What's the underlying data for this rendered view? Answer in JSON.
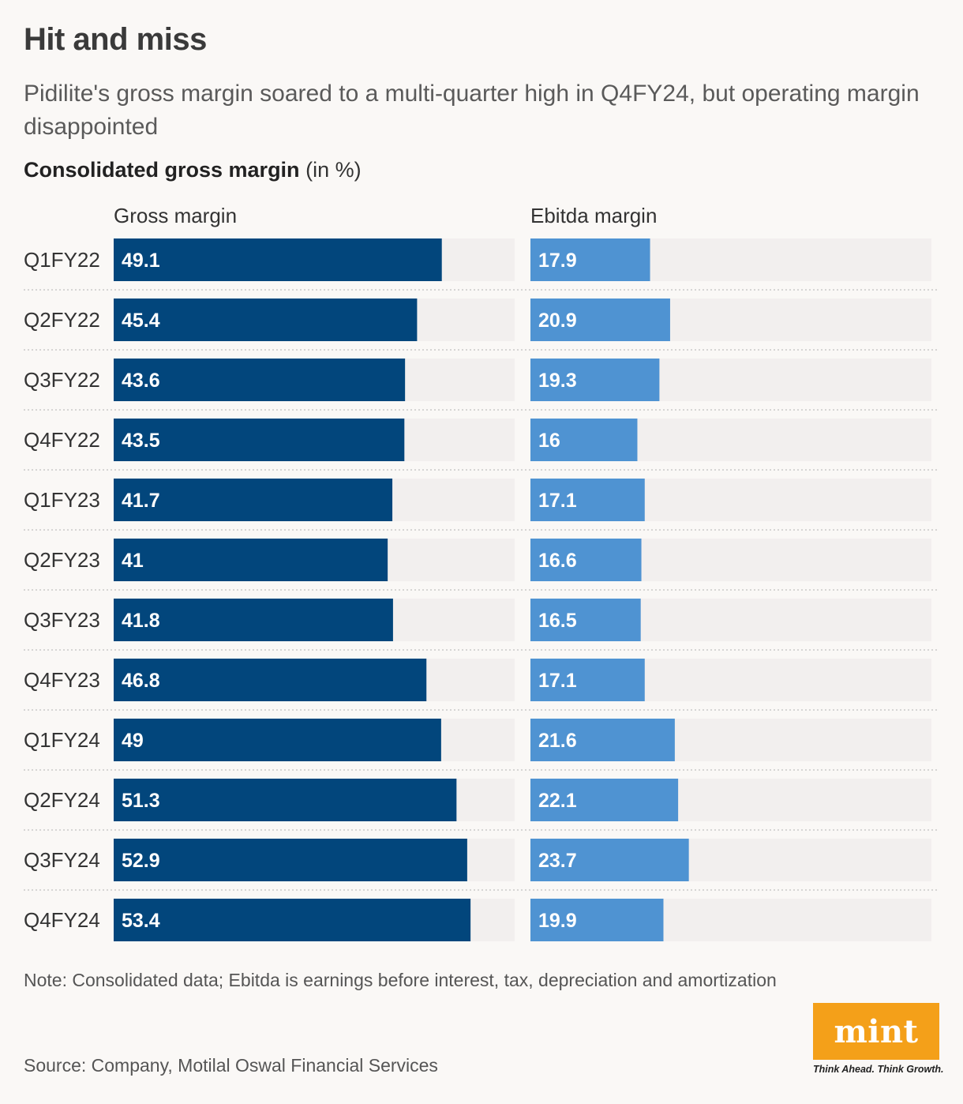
{
  "header": {
    "title": "Hit and miss",
    "subtitle": "Pidilite's gross margin soared to a multi-quarter high in Q4FY24, but operating margin disappointed",
    "chart_heading_bold": "Consolidated gross margin",
    "chart_heading_unit": "(in %)"
  },
  "colors": {
    "gross": "#02467c",
    "ebitda": "#4f93d2",
    "track": "#f2efee",
    "divider": "#c9c9c9"
  },
  "chart_data": {
    "type": "bar",
    "orientation": "horizontal",
    "categories": [
      "Q1FY22",
      "Q2FY22",
      "Q3FY22",
      "Q4FY22",
      "Q1FY23",
      "Q2FY23",
      "Q3FY23",
      "Q4FY23",
      "Q1FY24",
      "Q2FY24",
      "Q3FY24",
      "Q4FY24"
    ],
    "series": [
      {
        "name": "Gross margin",
        "values": [
          49.1,
          45.4,
          43.6,
          43.5,
          41.7,
          41,
          41.8,
          46.8,
          49,
          51.3,
          52.9,
          53.4
        ],
        "labels": [
          "49.1",
          "45.4",
          "43.6",
          "43.5",
          "41.7",
          "41",
          "41.8",
          "46.8",
          "49",
          "51.3",
          "52.9",
          "53.4"
        ],
        "xlim": [
          0,
          60
        ]
      },
      {
        "name": "Ebitda margin",
        "values": [
          17.9,
          20.9,
          19.3,
          16,
          17.1,
          16.6,
          16.5,
          17.1,
          21.6,
          22.1,
          23.7,
          19.9
        ],
        "labels": [
          "17.9",
          "20.9",
          "19.3",
          "16",
          "17.1",
          "16.6",
          "16.5",
          "17.1",
          "21.6",
          "22.1",
          "23.7",
          "19.9"
        ],
        "xlim": [
          0,
          60
        ]
      }
    ],
    "title": "Consolidated gross margin",
    "unit": "(in %)"
  },
  "footer": {
    "note": "Note: Consolidated data; Ebitda is earnings before interest, tax, depreciation and amortization",
    "source": "Source: Company, Motilal Oswal Financial Services",
    "logo_text": "mint",
    "tagline": "Think Ahead. Think Growth."
  }
}
